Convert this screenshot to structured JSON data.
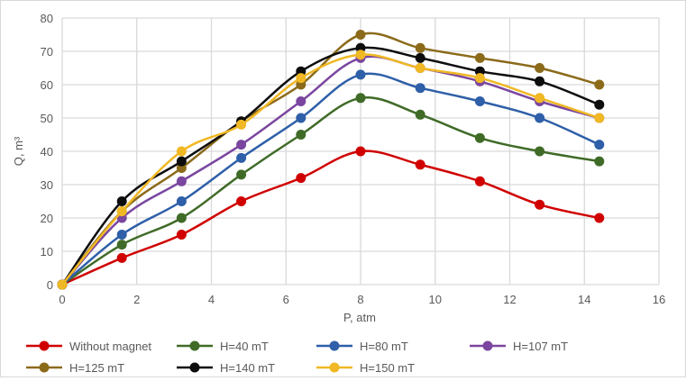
{
  "chart_data": {
    "type": "line",
    "title": "",
    "xlabel": "P, atm",
    "ylabel": "Q, m³",
    "xlim": [
      0,
      16
    ],
    "ylim": [
      0,
      80
    ],
    "xticks": [
      0,
      2,
      4,
      6,
      8,
      10,
      12,
      14,
      16
    ],
    "yticks": [
      0,
      10,
      20,
      30,
      40,
      50,
      60,
      70,
      80
    ],
    "grid": true,
    "legend_position": "bottom",
    "x": [
      0,
      1.6,
      3.2,
      4.8,
      6.4,
      8,
      9.6,
      11.2,
      12.8,
      14.4
    ],
    "series": [
      {
        "name": "Without magnet",
        "color": "#d00000",
        "values": [
          0,
          8,
          15,
          25,
          32,
          40,
          36,
          31,
          24,
          20
        ]
      },
      {
        "name": "H=40 mT",
        "color": "#3f6b27",
        "values": [
          0,
          12,
          20,
          33,
          45,
          56,
          51,
          44,
          40,
          37
        ]
      },
      {
        "name": "H=80 mT",
        "color": "#2e5fa8",
        "values": [
          0,
          15,
          25,
          38,
          50,
          63,
          59,
          55,
          50,
          42
        ]
      },
      {
        "name": "H=107 mT",
        "color": "#7a46a0",
        "values": [
          0,
          20,
          31,
          42,
          55,
          68,
          65,
          61,
          55,
          50
        ]
      },
      {
        "name": "H=125 mT",
        "color": "#8b6a1a",
        "values": [
          0,
          22,
          35,
          49,
          60,
          75,
          71,
          68,
          65,
          60
        ]
      },
      {
        "name": "H=140 mT",
        "color": "#0d0d0d",
        "values": [
          0,
          25,
          37,
          49,
          64,
          71,
          68,
          64,
          61,
          54
        ]
      },
      {
        "name": "H=150 mT",
        "color": "#f0b824",
        "values": [
          0,
          22,
          40,
          48,
          62,
          69,
          65,
          62,
          56,
          50
        ]
      }
    ]
  }
}
